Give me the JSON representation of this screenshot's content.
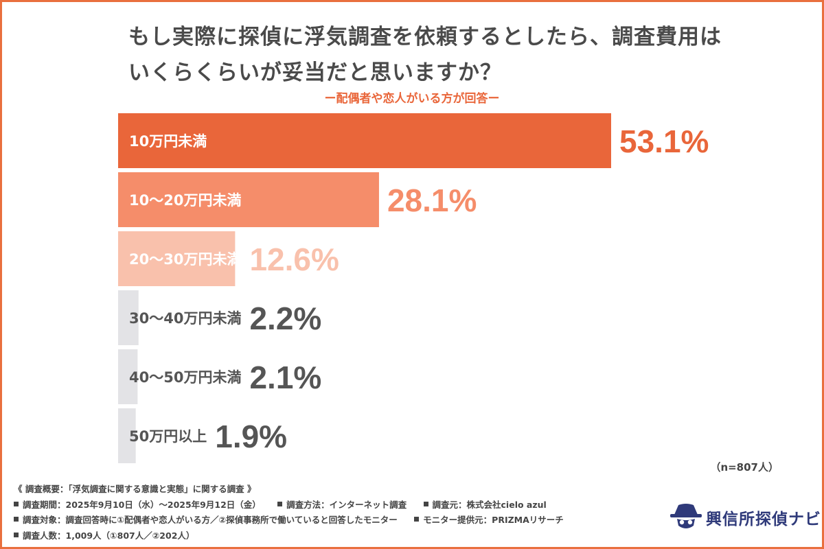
{
  "title_line1": "もし実際に探偵に浮気調査を依頼するとしたら、調査費用は",
  "title_line2": "いくらくらいが妥当だと思いますか？",
  "subtitle": "ー配偶者や恋人がいる方が回答ー",
  "chart_data": {
    "type": "bar",
    "orientation": "horizontal",
    "categories": [
      "10万円未満",
      "10〜20万円未満",
      "20〜30万円未満",
      "30〜40万円未満",
      "40〜50万円未満",
      "50万円以上"
    ],
    "values": [
      53.1,
      28.1,
      12.6,
      2.2,
      2.1,
      1.9
    ],
    "value_labels": [
      "53.1%",
      "28.1%",
      "12.6%",
      "2.2%",
      "2.1%",
      "1.9%"
    ],
    "unit": "%",
    "colors": [
      "#e9663a",
      "#f58d6a",
      "#f9c1ac",
      "#e3e3e6",
      "#e3e3e6",
      "#e3e3e6"
    ],
    "label_colors": [
      "#ffffff",
      "#ffffff",
      "#ffffff",
      "#555555",
      "#555555",
      "#555555"
    ],
    "value_colors": [
      "#e9663a",
      "#f58d6a",
      "#f9c1ac",
      "#555555",
      "#555555",
      "#555555"
    ],
    "xlim": [
      0,
      53.1
    ],
    "grid": false,
    "legend": "none"
  },
  "n_label": "（n=807人）",
  "footer": {
    "overview": "《 調査概要：「浮気調査に関する意識と実態」に関する調査 》",
    "period": "調査期間：2025年9月10日（水）〜2025年9月12日（金）",
    "method": "調査方法：インターネット調査",
    "organizer": "調査元：株式会社cielo azul",
    "target": "調査対象：調査回答時に①配偶者や恋人がいる方／②探偵事務所で働いていると回答したモニター",
    "provider": "モニター提供元：PRIZMAリサーチ",
    "count": "調査人数：1,009人（①807人／②202人）"
  },
  "logo": {
    "text": "興信所探偵ナビ",
    "icon": "detective-hat-icon",
    "color": "#2f3a7a"
  }
}
